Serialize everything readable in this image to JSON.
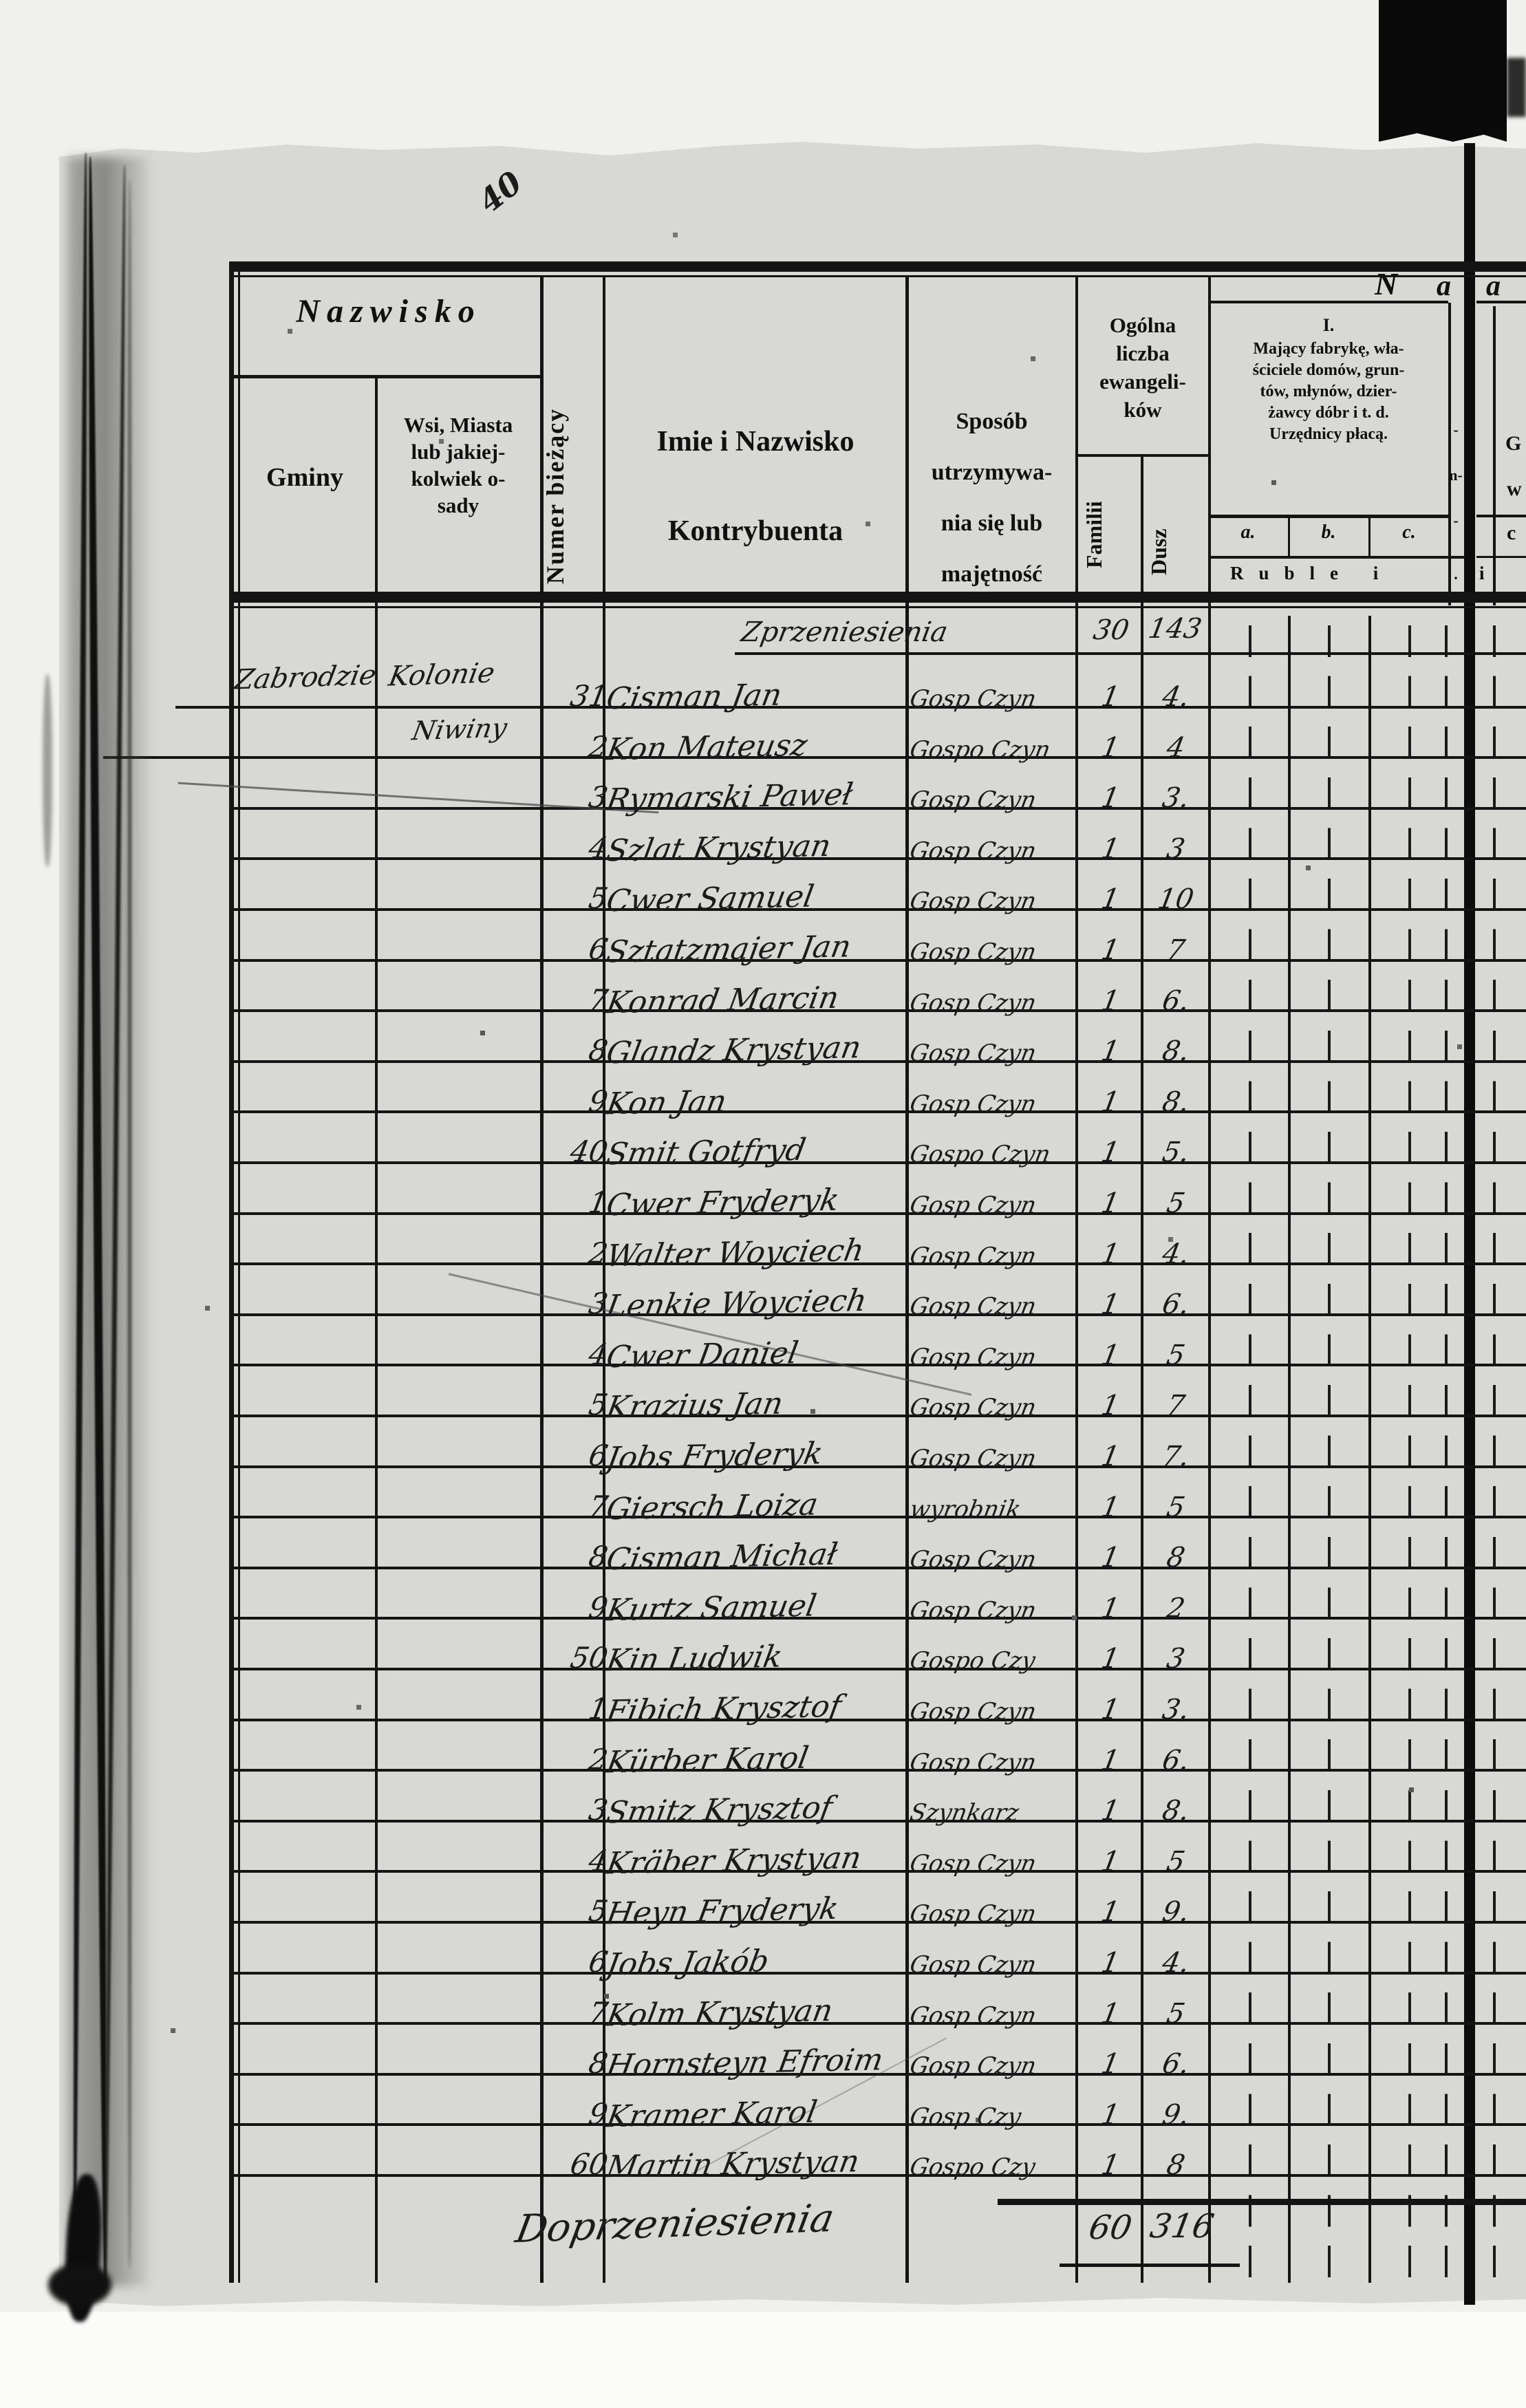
{
  "page": {
    "scribble": "40",
    "header": {
      "nazwisko": "Nazwisko",
      "gminy": "Gminy",
      "wsi_lines": [
        "Wsi, Miasta",
        "lub jakiej-",
        "kolwiek o-",
        "sady"
      ],
      "numer": "Numer bieżący",
      "imie_line1": "Imie i Nazwisko",
      "imie_line2": "Kontrybuenta",
      "sposob_lines": [
        "Sposób",
        "utrzymywa-",
        "nia się lub",
        "majętność"
      ],
      "ogolna_lines": [
        "Ogólna",
        "liczba",
        "ewangeli-",
        "ków"
      ],
      "familii": "Familii",
      "dusz": "Dusz",
      "section1_numeral": "I.",
      "section1_lines": [
        "Mający fabrykę, wła-",
        "ściciele domów, grun-",
        "tów, młynów, dzier-",
        "żawcy dóbr i t. d.",
        "Urzędnicy płacą."
      ],
      "col_a": "a.",
      "col_b": "b.",
      "col_c": "c.",
      "ruble": "Ruble i",
      "ruble_i_right": "i",
      "heading_n": "N",
      "heading_a1": "a",
      "heading_a2": "a",
      "strip_fragments": [
        "-",
        "n-",
        "-",
        "."
      ],
      "right_fragments": [
        "G",
        "w",
        "c"
      ]
    },
    "places": {
      "gmina": "Zabrodzie",
      "wies_row1": "Kolonie",
      "wies_row2": "Niwiny"
    },
    "carry_forward": {
      "label": "Zprzeniesienia",
      "familii": "30",
      "dusz": "143"
    },
    "carry_total": {
      "label": "Doprzeniesienia",
      "familii": "60",
      "dusz": "316"
    },
    "rows": [
      {
        "num": "31",
        "name": "Cisman Jan",
        "occ": "Gosp Czyn",
        "fam": "1",
        "dusz": "4."
      },
      {
        "num": "2",
        "name": "Kon Mateusz",
        "occ": "Gospo Czyn",
        "fam": "1",
        "dusz": "4"
      },
      {
        "num": "3",
        "name": "Rymarski Paweł",
        "occ": "Gosp Czyn",
        "fam": "1",
        "dusz": "3."
      },
      {
        "num": "4",
        "name": "Szlat Krystyan",
        "occ": "Gosp Czyn",
        "fam": "1",
        "dusz": "3"
      },
      {
        "num": "5",
        "name": "Cwer Samuel",
        "occ": "Gosp Czyn",
        "fam": "1",
        "dusz": "10"
      },
      {
        "num": "6",
        "name": "Sztatzmajer Jan",
        "occ": "Gosp Czyn",
        "fam": "1",
        "dusz": "7"
      },
      {
        "num": "7",
        "name": "Konrad Marcin",
        "occ": "Gosp Czyn",
        "fam": "1",
        "dusz": "6."
      },
      {
        "num": "8",
        "name": "Glandz Krystyan",
        "occ": "Gosp Czyn",
        "fam": "1",
        "dusz": "8."
      },
      {
        "num": "9",
        "name": "Kon Jan",
        "occ": "Gosp Czyn",
        "fam": "1",
        "dusz": "8."
      },
      {
        "num": "40",
        "name": "Smit Gotfryd",
        "occ": "Gospo Czyn",
        "fam": "1",
        "dusz": "5."
      },
      {
        "num": "1",
        "name": "Cwer Fryderyk",
        "occ": "Gosp Czyn",
        "fam": "1",
        "dusz": "5"
      },
      {
        "num": "2",
        "name": "Walter Woyciech",
        "occ": "Gosp Czyn",
        "fam": "1",
        "dusz": "4."
      },
      {
        "num": "3",
        "name": "Lenkie Woyciech",
        "occ": "Gosp Czyn",
        "fam": "1",
        "dusz": "6."
      },
      {
        "num": "4",
        "name": "Cwer Daniel",
        "occ": "Gosp Czyn",
        "fam": "1",
        "dusz": "5"
      },
      {
        "num": "5",
        "name": "Krazius Jan",
        "occ": "Gosp Czyn",
        "fam": "1",
        "dusz": "7"
      },
      {
        "num": "6",
        "name": "Jobs Fryderyk",
        "occ": "Gosp Czyn",
        "fam": "1",
        "dusz": "7."
      },
      {
        "num": "7",
        "name": "Giersch Loiza",
        "occ": "wyrobnik",
        "fam": "1",
        "dusz": "5"
      },
      {
        "num": "8",
        "name": "Cisman Michał",
        "occ": "Gosp Czyn",
        "fam": "1",
        "dusz": "8"
      },
      {
        "num": "9",
        "name": "Kurtz Samuel",
        "occ": "Gosp Czyn",
        "fam": "1",
        "dusz": "2"
      },
      {
        "num": "50",
        "name": "Kin Ludwik",
        "occ": "Gospo Czy",
        "fam": "1",
        "dusz": "3"
      },
      {
        "num": "1",
        "name": "Fibich Krysztof",
        "occ": "Gosp Czyn",
        "fam": "1",
        "dusz": "3."
      },
      {
        "num": "2",
        "name": "Kürber Karol",
        "occ": "Gosp Czyn",
        "fam": "1",
        "dusz": "6."
      },
      {
        "num": "3",
        "name": "Smitz Krysztof",
        "occ": "Szynkarz",
        "fam": "1",
        "dusz": "8."
      },
      {
        "num": "4",
        "name": "Kräber Krystyan",
        "occ": "Gosp Czyn",
        "fam": "1",
        "dusz": "5"
      },
      {
        "num": "5",
        "name": "Heyn Fryderyk",
        "occ": "Gosp Czyn",
        "fam": "1",
        "dusz": "9."
      },
      {
        "num": "6",
        "name": "Jobs Jakób",
        "occ": "Gosp Czyn",
        "fam": "1",
        "dusz": "4."
      },
      {
        "num": "7",
        "name": "Kolm Krystyan",
        "occ": "Gosp Czyn",
        "fam": "1",
        "dusz": "5"
      },
      {
        "num": "8",
        "name": "Hornsteyn Efroim",
        "occ": "Gosp Czyn",
        "fam": "1",
        "dusz": "6."
      },
      {
        "num": "9",
        "name": "Kramer Karol",
        "occ": "Gosp Czy",
        "fam": "1",
        "dusz": "9."
      },
      {
        "num": "60",
        "name": "Martin Krystyan",
        "occ": "Gospo Czy",
        "fam": "1",
        "dusz": "8"
      }
    ]
  }
}
